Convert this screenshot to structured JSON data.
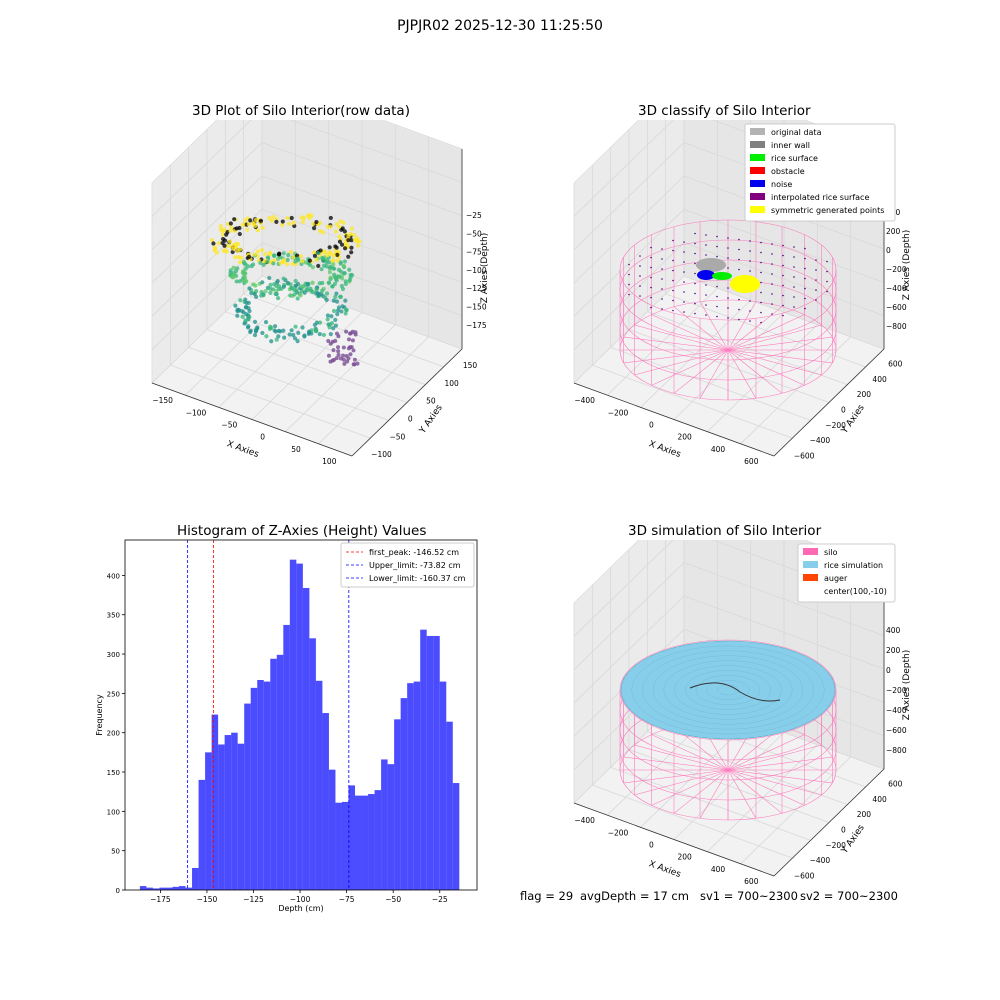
{
  "suptitle": "PJPJR02 2025-12-30 11:25:50",
  "footer": {
    "flag": "flag = 29",
    "avg": "avgDepth = 17 cm",
    "sv1": "sv1 = 700~2300",
    "sv2": "sv2 = 700~2300"
  },
  "panels": {
    "raw": {
      "title": "3D Plot of Silo Interior(row data)",
      "xlabel": "X Axies",
      "ylabel": "Y Axies",
      "zlabel": "Z Axies (Depth)",
      "xticks": [
        "−150",
        "−100",
        "−50",
        "0",
        "50",
        "100"
      ],
      "yticks": [
        "150",
        "100",
        "50",
        "0",
        "−50",
        "−100"
      ],
      "zticks": [
        "−25",
        "−50",
        "−75",
        "−100",
        "−125",
        "−150",
        "−175"
      ]
    },
    "classify": {
      "title": "3D classify of Silo Interior",
      "xlabel": "X Axies",
      "ylabel": "Y Axies",
      "zlabel": "Z Axies (Depth)",
      "xticks": [
        "−400",
        "−200",
        "0",
        "200",
        "400",
        "600"
      ],
      "yticks": [
        "600",
        "400",
        "200",
        "0",
        "−200",
        "−400",
        "−600"
      ],
      "zticks": [
        "400",
        "200",
        "0",
        "−200",
        "−400",
        "−600",
        "−800"
      ],
      "legend": [
        {
          "label": "original data",
          "color": "#b3b3b3"
        },
        {
          "label": "inner wall",
          "color": "#808080"
        },
        {
          "label": "rice surface",
          "color": "#00ee00"
        },
        {
          "label": "obstacle",
          "color": "#ff0000"
        },
        {
          "label": "noise",
          "color": "#0000ee"
        },
        {
          "label": "interpolated rice surface",
          "color": "#800080"
        },
        {
          "label": "symmetric generated points",
          "color": "#ffff00"
        }
      ]
    },
    "simulation": {
      "title": "3D simulation of Silo Interior",
      "xlabel": "X Axies",
      "ylabel": "Y Axies",
      "zlabel": "Z Axies (Depth)",
      "xticks": [
        "−400",
        "−200",
        "0",
        "200",
        "400",
        "600"
      ],
      "yticks": [
        "600",
        "400",
        "200",
        "0",
        "−200",
        "−400",
        "−600"
      ],
      "zticks": [
        "400",
        "200",
        "0",
        "−200",
        "−400",
        "−600",
        "−800"
      ],
      "legend": [
        {
          "label": "silo",
          "color": "#ff69b4"
        },
        {
          "label": "rice simulation",
          "color": "#87ceeb"
        },
        {
          "label": "auger",
          "color": "#ff4500"
        },
        {
          "label": "center(100,-10)",
          "color": ""
        }
      ]
    }
  },
  "chart_data": [
    {
      "type": "bar",
      "title": "Histogram of Z-Axies (Height) Values",
      "xlabel": "Depth (cm)",
      "ylabel": "Frequency",
      "bar_color": "#0000ff",
      "xlim": [
        -194,
        -5
      ],
      "ylim": [
        0,
        445
      ],
      "xticks": [
        -175,
        -150,
        -125,
        -100,
        -75,
        -50,
        -25
      ],
      "xtick_labels": [
        "−175",
        "−150",
        "−125",
        "−100",
        "−75",
        "−50",
        "−25"
      ],
      "yticks": [
        0,
        50,
        100,
        150,
        200,
        250,
        300,
        350,
        400
      ],
      "bin_start": -186,
      "bin_width": 3.5,
      "values": [
        5,
        3,
        2,
        3,
        3,
        4,
        5,
        3,
        28,
        140,
        175,
        223,
        185,
        197,
        200,
        186,
        237,
        257,
        267,
        265,
        294,
        299,
        337,
        420,
        415,
        384,
        320,
        266,
        225,
        153,
        111,
        112,
        133,
        120,
        120,
        122,
        127,
        166,
        160,
        217,
        244,
        263,
        265,
        331,
        323,
        323,
        265,
        214,
        136
      ],
      "lines": [
        {
          "label": "first_peak: -146.52 cm",
          "x": -146.52,
          "color": "#ff0000"
        },
        {
          "label": "Upper_limit: -73.82 cm",
          "x": -73.82,
          "color": "#0000ff"
        },
        {
          "label": "Lower_limit: -160.37 cm",
          "x": -160.37,
          "color": "#0000ff"
        }
      ]
    }
  ]
}
